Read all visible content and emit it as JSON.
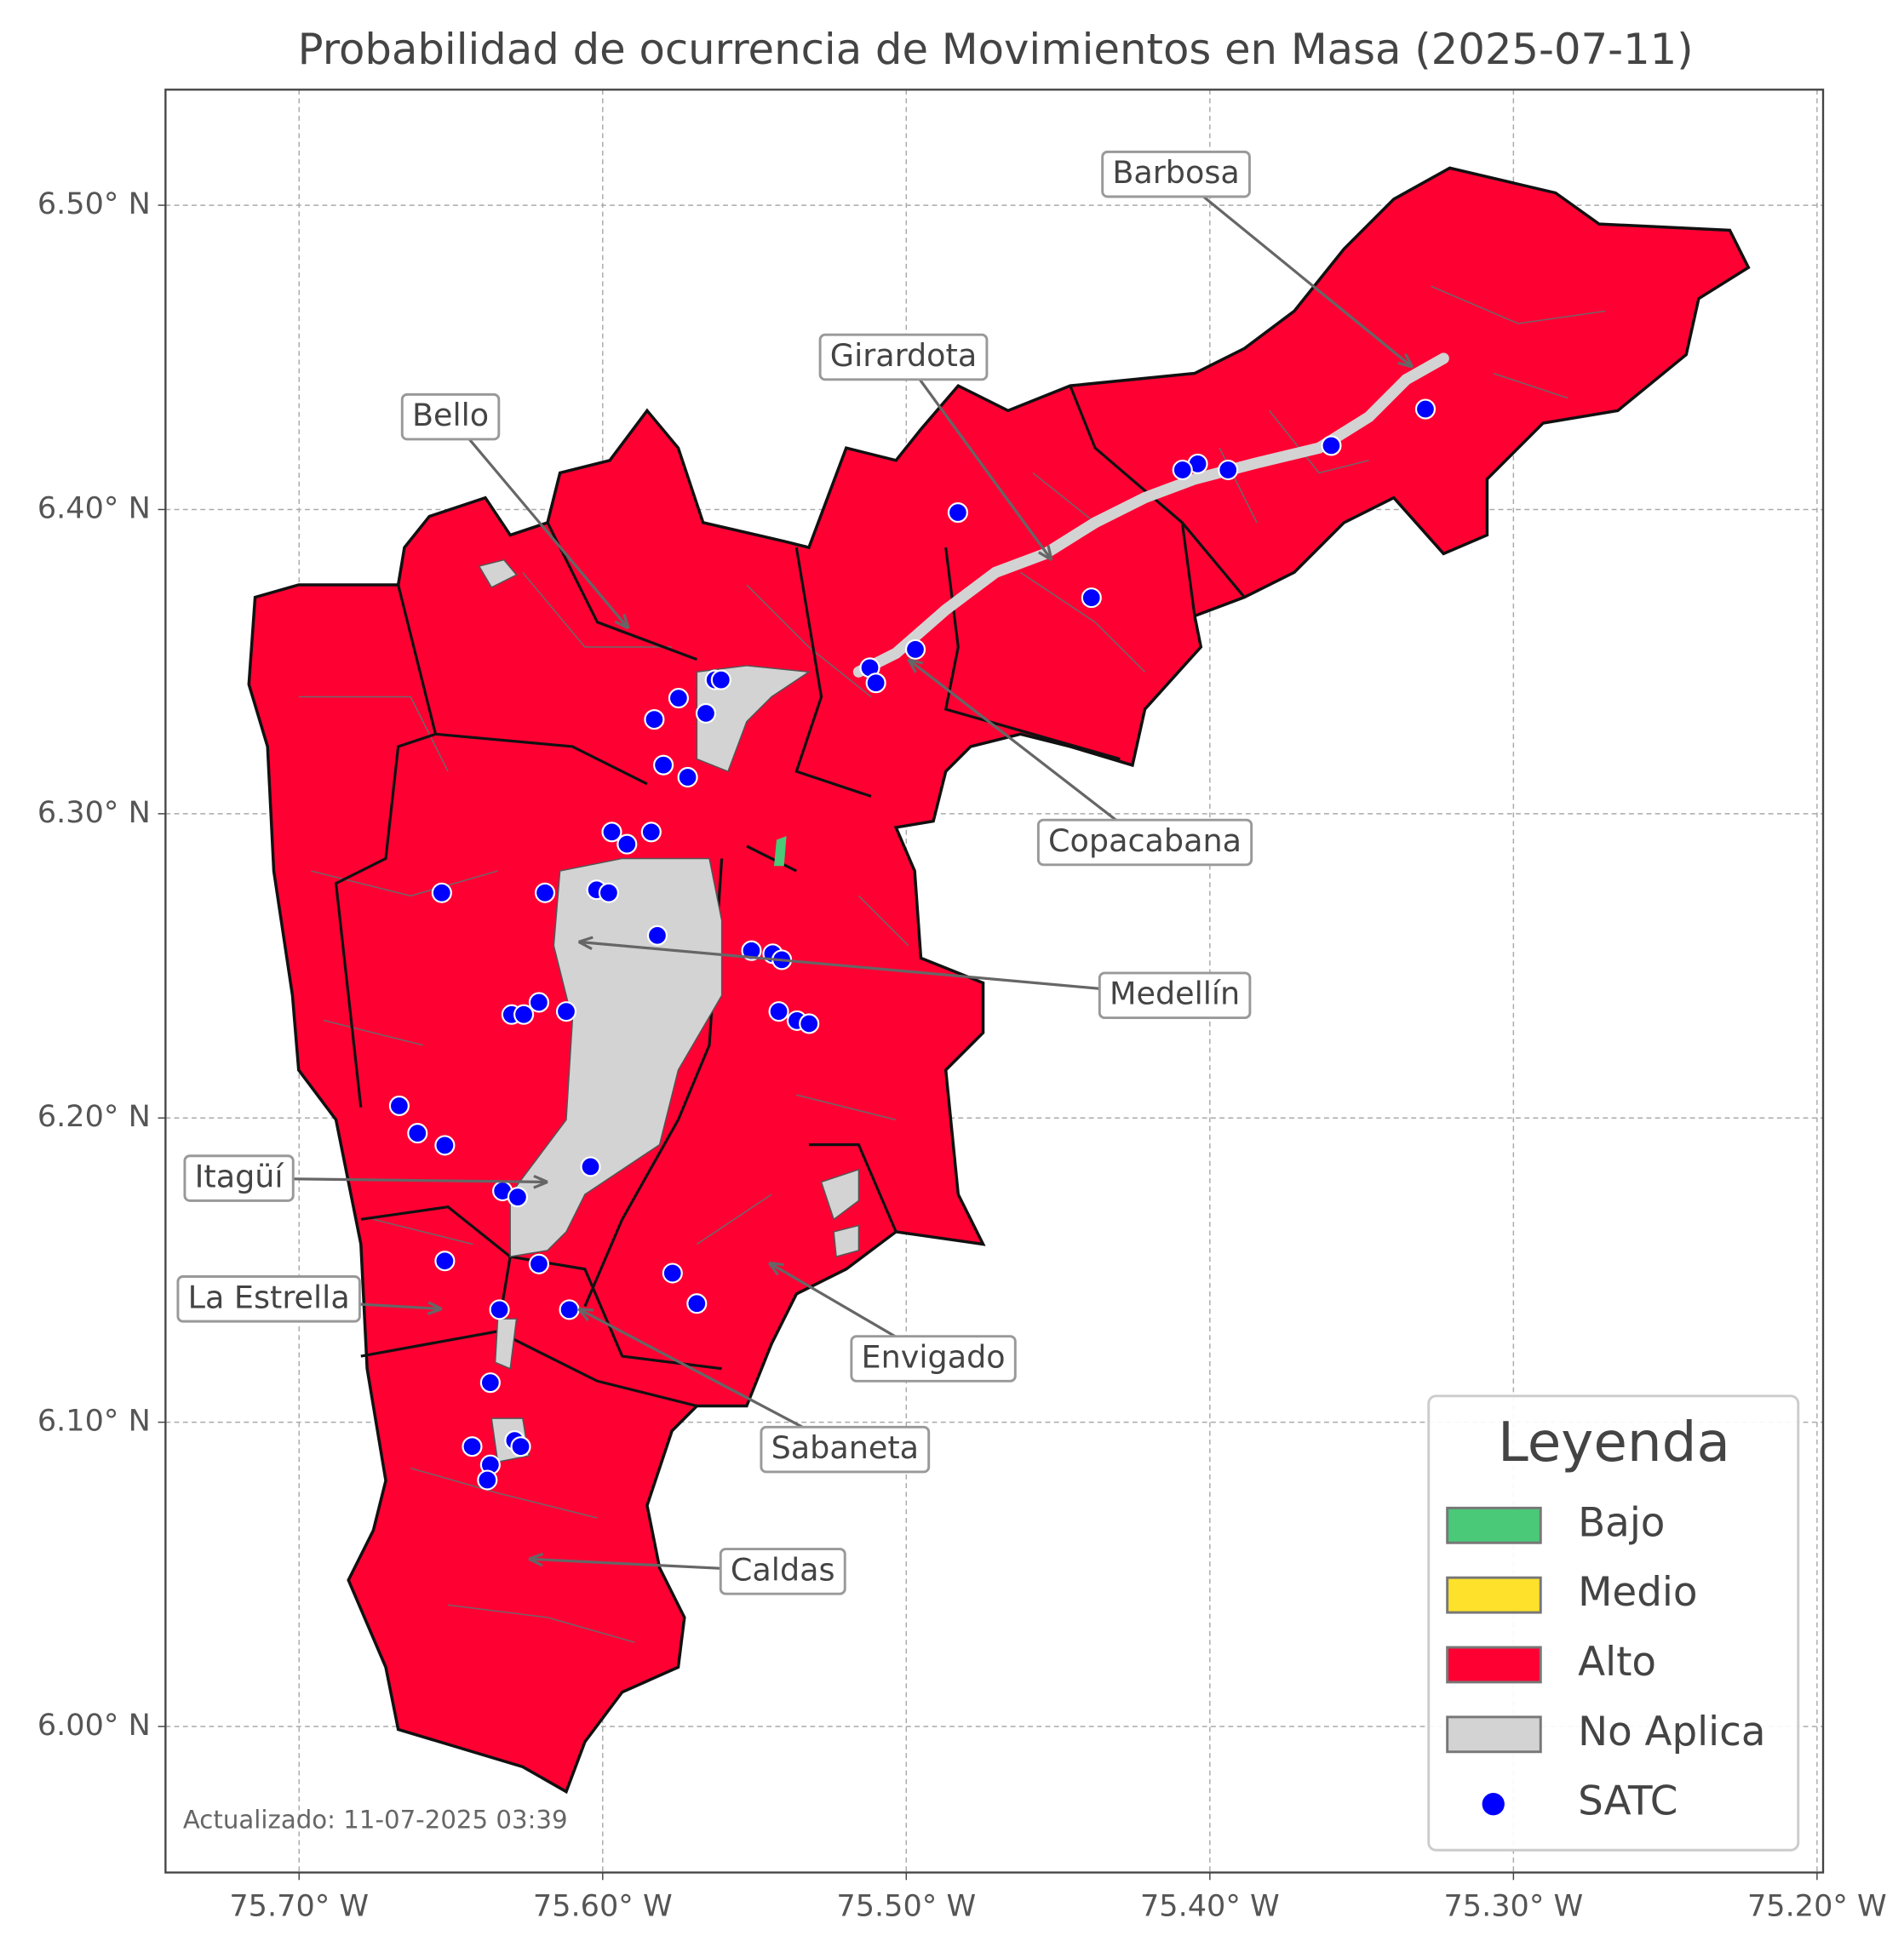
{
  "title": "Probabilidad de ocurrencia de Movimientos en Masa (2025-07-11)",
  "xlim": [
    -75.744,
    -75.198
  ],
  "ylim": [
    5.952,
    6.538
  ],
  "xticks": [
    {
      "value": -75.7,
      "label": "75.70° W"
    },
    {
      "value": -75.6,
      "label": "75.60° W"
    },
    {
      "value": -75.5,
      "label": "75.50° W"
    },
    {
      "value": -75.4,
      "label": "75.40° W"
    },
    {
      "value": -75.3,
      "label": "75.30° W"
    },
    {
      "value": -75.2,
      "label": "75.20° W"
    }
  ],
  "yticks": [
    {
      "value": 6.0,
      "label": "6.00° N"
    },
    {
      "value": 6.1,
      "label": "6.10° N"
    },
    {
      "value": 6.2,
      "label": "6.20° N"
    },
    {
      "value": 6.3,
      "label": "6.30° N"
    },
    {
      "value": 6.4,
      "label": "6.40° N"
    },
    {
      "value": 6.5,
      "label": "6.50° N"
    }
  ],
  "grid": true,
  "municipalities": [
    "Barbosa",
    "Girardota",
    "Bello",
    "Copacabana",
    "Medellín",
    "Itagüí",
    "La Estrella",
    "Envigado",
    "Sabaneta",
    "Caldas"
  ],
  "legend": {
    "title": "Leyenda",
    "entries": [
      {
        "label": "Bajo",
        "color": "#4ac978"
      },
      {
        "label": "Medio",
        "color": "#fde12a"
      },
      {
        "label": "Alto",
        "color": "#ff0033"
      },
      {
        "label": "No Aplica",
        "color": "#d3d3d3"
      },
      {
        "label": "SATC",
        "color": "#0000ff"
      }
    ]
  },
  "satc": {
    "lon": [
      -75.329,
      -75.36,
      -75.394,
      -75.404,
      -75.409,
      -75.483,
      -75.439,
      -75.497,
      -75.512,
      -75.51,
      -75.563,
      -75.561,
      -75.575,
      -75.583,
      -75.566,
      -75.58,
      -75.572,
      -75.597,
      -75.592,
      -75.584,
      -75.619,
      -75.602,
      -75.598,
      -75.582,
      -75.653,
      -75.551,
      -75.544,
      -75.541,
      -75.542,
      -75.536,
      -75.532,
      -75.63,
      -75.626,
      -75.621,
      -75.612,
      -75.667,
      -75.661,
      -75.652,
      -75.604,
      -75.633,
      -75.628,
      -75.652,
      -75.621,
      -75.577,
      -75.569,
      -75.611,
      -75.634,
      -75.637,
      -75.643,
      -75.629,
      -75.627,
      -75.637,
      -75.638
    ],
    "lat": [
      6.433,
      6.421,
      6.413,
      6.415,
      6.413,
      6.399,
      6.371,
      6.354,
      6.348,
      6.343,
      6.344,
      6.344,
      6.338,
      6.331,
      6.333,
      6.316,
      6.312,
      6.294,
      6.29,
      6.294,
      6.274,
      6.275,
      6.274,
      6.26,
      6.274,
      6.255,
      6.254,
      6.252,
      6.235,
      6.232,
      6.231,
      6.234,
      6.234,
      6.238,
      6.235,
      6.204,
      6.195,
      6.191,
      6.184,
      6.176,
      6.174,
      6.153,
      6.152,
      6.149,
      6.139,
      6.137,
      6.137,
      6.113,
      6.092,
      6.094,
      6.092,
      6.086,
      6.081
    ]
  },
  "note": "Actualizado: 11-07-2025 03:39"
}
